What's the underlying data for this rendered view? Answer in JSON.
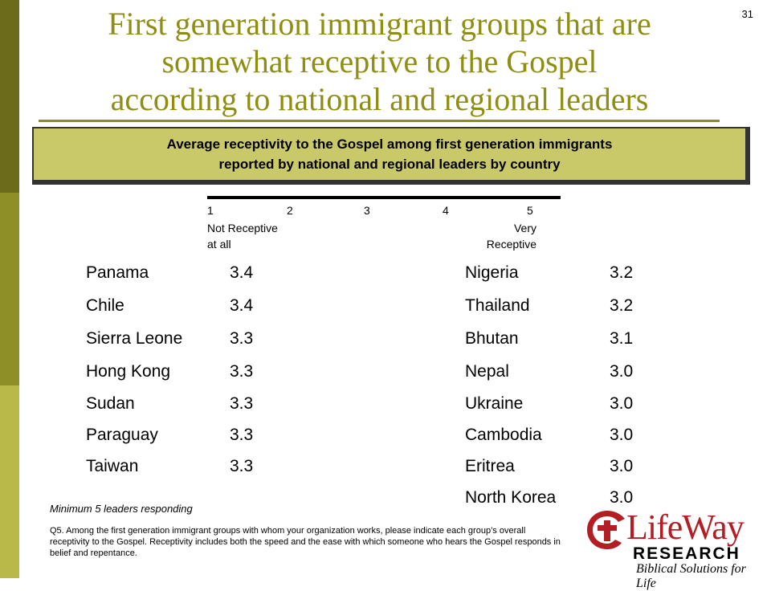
{
  "page_number": "31",
  "title": {
    "line1": "First generation immigrant groups that are",
    "line2": "somewhat receptive to the Gospel",
    "line3": "according to national and regional leaders"
  },
  "subtitle": {
    "line1": "Average receptivity to the Gospel among first generation immigrants",
    "line2": "reported by national and regional leaders by country"
  },
  "scale": {
    "numbers": [
      "1",
      "2",
      "3",
      "4",
      "5"
    ],
    "low_label": "Not Receptive\nat all",
    "high_label": "Very\nReceptive"
  },
  "left_list": [
    {
      "country": "Panama",
      "score": "3.4"
    },
    {
      "country": "Chile",
      "score": "3.4"
    },
    {
      "country": "Sierra Leone",
      "score": "3.3"
    },
    {
      "country": "Hong Kong",
      "score": "3.3"
    },
    {
      "country": "Sudan",
      "score": "3.3"
    },
    {
      "country": "Paraguay",
      "score": "3.3"
    },
    {
      "country": "Taiwan",
      "score": "3.3"
    }
  ],
  "right_list": [
    {
      "country": "Nigeria",
      "score": "3.2"
    },
    {
      "country": "Thailand",
      "score": "3.2"
    },
    {
      "country": "Bhutan",
      "score": "3.1"
    },
    {
      "country": "Nepal",
      "score": "3.0"
    },
    {
      "country": "Ukraine",
      "score": "3.0"
    },
    {
      "country": "Cambodia",
      "score": "3.0"
    },
    {
      "country": "Eritrea",
      "score": "3.0"
    },
    {
      "country": "North Korea",
      "score": "3.0"
    }
  ],
  "footnote_min": "Minimum 5 leaders responding",
  "footnote_q5": "Q5. Among the first generation immigrant groups with whom your organization works, please indicate each group’s overall receptivity to the Gospel.  Receptivity includes both the speed and the ease with which someone who hears the Gospel responds in belief and repentance.",
  "logo": {
    "word": "LifeWay",
    "research": "RESEARCH",
    "tagline": "Biblical Solutions for Life"
  },
  "colors": {
    "title": "#8e8e12",
    "subtitle_box": "#c9c96a",
    "logo_red": "#b21e23",
    "side_bar_dark": "#6b6b1a",
    "side_bar_mid": "#8f8f28",
    "side_bar_light": "#b9b94a"
  }
}
